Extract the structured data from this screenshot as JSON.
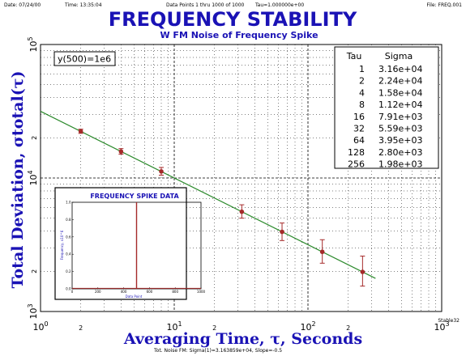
{
  "header": {
    "date": "Date: 07/24/00",
    "time": "Time: 13:35:04",
    "data_points": "Data Points 1 thru 1000 of 1000",
    "tau": "Tau=1.000000e+00",
    "file": "File: FREQ.001"
  },
  "title": "FREQUENCY STABILITY",
  "subtitle": "W FM Noise of Frequency Spike",
  "annotation": "y(500)=1e6",
  "footer_note": "Tot. Noise FM: Sigma(1)=3.163859e+04, Slope=-0.5",
  "corner_note": "Stable32",
  "chart_data": {
    "type": "scatter",
    "xlabel": "Averaging Time, τ, Seconds",
    "ylabel": "Total Deviation, σtotal(τ)",
    "x_scale": "log",
    "y_scale": "log",
    "xlim": [
      1,
      1000
    ],
    "ylim": [
      1000,
      100000
    ],
    "grid": true,
    "x_decade_labels": [
      {
        "base": "10",
        "exp": "0"
      },
      {
        "base": "10",
        "exp": "1"
      },
      {
        "base": "10",
        "exp": "2"
      },
      {
        "base": "10",
        "exp": "3"
      }
    ],
    "x_minor_label": "2",
    "y_decade_labels": [
      {
        "base": "10",
        "exp": "3"
      },
      {
        "base": "10",
        "exp": "4"
      },
      {
        "base": "10",
        "exp": "5"
      }
    ],
    "y_minor_label": "2",
    "table": {
      "headers": [
        "Tau",
        "Sigma"
      ],
      "rows": [
        [
          "1",
          "3.16e+04"
        ],
        [
          "2",
          "2.24e+04"
        ],
        [
          "4",
          "1.58e+04"
        ],
        [
          "8",
          "1.12e+04"
        ],
        [
          "16",
          "7.91e+03"
        ],
        [
          "32",
          "5.59e+03"
        ],
        [
          "64",
          "3.95e+03"
        ],
        [
          "128",
          "2.80e+03"
        ],
        [
          "256",
          "1.98e+03"
        ]
      ]
    },
    "points": [
      {
        "tau": 2,
        "sigma": 22400,
        "err_lo": 21600,
        "err_hi": 23200
      },
      {
        "tau": 4,
        "sigma": 15800,
        "err_lo": 15100,
        "err_hi": 16600
      },
      {
        "tau": 8,
        "sigma": 11200,
        "err_lo": 10500,
        "err_hi": 12000
      },
      {
        "tau": 32,
        "sigma": 5590,
        "err_lo": 5000,
        "err_hi": 6300
      },
      {
        "tau": 64,
        "sigma": 3950,
        "err_lo": 3400,
        "err_hi": 4600
      },
      {
        "tau": 128,
        "sigma": 2800,
        "err_lo": 2300,
        "err_hi": 3450
      },
      {
        "tau": 256,
        "sigma": 1980,
        "err_lo": 1550,
        "err_hi": 2600
      }
    ],
    "fit_line": {
      "tau": [
        1,
        320
      ],
      "sigma": [
        31600,
        1770
      ]
    },
    "colors": {
      "points": "#a52a2a",
      "fit": "#2e8b2e",
      "text": "#1a12b5",
      "grid": "#000000"
    },
    "inset": {
      "title": "FREQUENCY SPIKE DATA",
      "xlabel": "Data Point",
      "ylabel": "Frequency, x10^6",
      "x_ticks": [
        "0",
        "200",
        "400",
        "600",
        "800",
        "1000"
      ],
      "y_ticks": [
        "0.0",
        "0.2",
        "0.4",
        "0.6",
        "0.8",
        "1.0"
      ],
      "xlim": [
        0,
        1000
      ],
      "ylim": [
        0,
        1
      ],
      "spike_x": 500,
      "spike_y": 1
    }
  }
}
